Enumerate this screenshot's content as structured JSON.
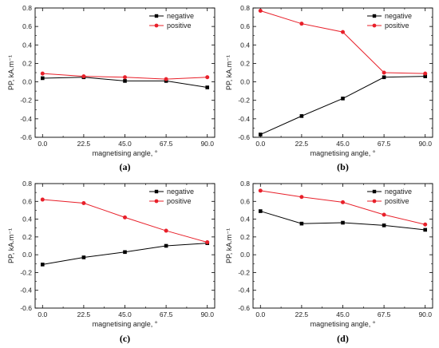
{
  "chart_data": [
    {
      "type": "line",
      "panel_label": "(a)",
      "xlabel": "magnetising angle, °",
      "ylabel": "PP, kA.m⁻¹",
      "x": [
        0.0,
        22.5,
        45.0,
        67.5,
        90.0
      ],
      "x_tick_labels": [
        "0.0",
        "22.5",
        "45.0",
        "67.5",
        "90.0"
      ],
      "ylim": [
        -0.6,
        0.8
      ],
      "y_ticks": [
        -0.6,
        -0.4,
        -0.2,
        0.0,
        0.2,
        0.4,
        0.6,
        0.8
      ],
      "y_tick_labels": [
        "-0.6",
        "-0.4",
        "-0.2",
        "0.0",
        "0.2",
        "0.4",
        "0.6",
        "0.8"
      ],
      "legend_position": "top-right",
      "series": [
        {
          "name": "negative",
          "color": "#000000",
          "marker": "square",
          "values": [
            0.04,
            0.05,
            0.01,
            0.01,
            -0.06
          ]
        },
        {
          "name": "positive",
          "color": "#e8202a",
          "marker": "circle",
          "values": [
            0.09,
            0.06,
            0.05,
            0.03,
            0.05
          ]
        }
      ]
    },
    {
      "type": "line",
      "panel_label": "(b)",
      "xlabel": "magnetising angle, °",
      "ylabel": "PP, kA.m⁻¹",
      "x": [
        0.0,
        22.5,
        45.0,
        67.5,
        90.0
      ],
      "x_tick_labels": [
        "0.0",
        "22.5",
        "45.0",
        "67.5",
        "90.0"
      ],
      "ylim": [
        -0.6,
        0.8
      ],
      "y_ticks": [
        -0.6,
        -0.4,
        -0.2,
        0.0,
        0.2,
        0.4,
        0.6,
        0.8
      ],
      "y_tick_labels": [
        "-0.6",
        "-0.4",
        "-0.2",
        "0.0",
        "0.2",
        "0.4",
        "0.6",
        "0.8"
      ],
      "legend_position": "top-right",
      "series": [
        {
          "name": "negative",
          "color": "#000000",
          "marker": "square",
          "values": [
            -0.57,
            -0.37,
            -0.18,
            0.05,
            0.06
          ]
        },
        {
          "name": "positive",
          "color": "#e8202a",
          "marker": "circle",
          "values": [
            0.77,
            0.63,
            0.54,
            0.1,
            0.09
          ]
        }
      ]
    },
    {
      "type": "line",
      "panel_label": "(c)",
      "xlabel": "magnetising angle, °",
      "ylabel": "PP, kA.m⁻¹",
      "x": [
        0.0,
        22.5,
        45.0,
        67.5,
        90.0
      ],
      "x_tick_labels": [
        "0.0",
        "22.5",
        "45.0",
        "67.5",
        "90.0"
      ],
      "ylim": [
        -0.6,
        0.8
      ],
      "y_ticks": [
        -0.6,
        -0.4,
        -0.2,
        0.0,
        0.2,
        0.4,
        0.6,
        0.8
      ],
      "y_tick_labels": [
        "-0.6",
        "-0.4",
        "-0.2",
        "0.0",
        "0.2",
        "0.4",
        "0.6",
        "0.8"
      ],
      "legend_position": "top-right",
      "series": [
        {
          "name": "negative",
          "color": "#000000",
          "marker": "square",
          "values": [
            -0.11,
            -0.03,
            0.03,
            0.1,
            0.13
          ]
        },
        {
          "name": "positive",
          "color": "#e8202a",
          "marker": "circle",
          "values": [
            0.62,
            0.58,
            0.42,
            0.27,
            0.14
          ]
        }
      ]
    },
    {
      "type": "line",
      "panel_label": "(d)",
      "xlabel": "magnetising angle, °",
      "ylabel": "PP, kA.m⁻¹",
      "x": [
        0.0,
        22.5,
        45.0,
        67.5,
        90.0
      ],
      "x_tick_labels": [
        "0.0",
        "22.5",
        "45.0",
        "67.5",
        "90.0"
      ],
      "ylim": [
        -0.6,
        0.8
      ],
      "y_ticks": [
        -0.6,
        -0.4,
        -0.2,
        0.0,
        0.2,
        0.4,
        0.6,
        0.8
      ],
      "y_tick_labels": [
        "-0.6",
        "-0.4",
        "-0.2",
        "0.0",
        "0.2",
        "0.4",
        "0.6",
        "0.8"
      ],
      "legend_position": "top-right",
      "series": [
        {
          "name": "negative",
          "color": "#000000",
          "marker": "square",
          "values": [
            0.49,
            0.35,
            0.36,
            0.33,
            0.28
          ]
        },
        {
          "name": "positive",
          "color": "#e8202a",
          "marker": "circle",
          "values": [
            0.72,
            0.65,
            0.59,
            0.45,
            0.34
          ]
        }
      ]
    }
  ]
}
